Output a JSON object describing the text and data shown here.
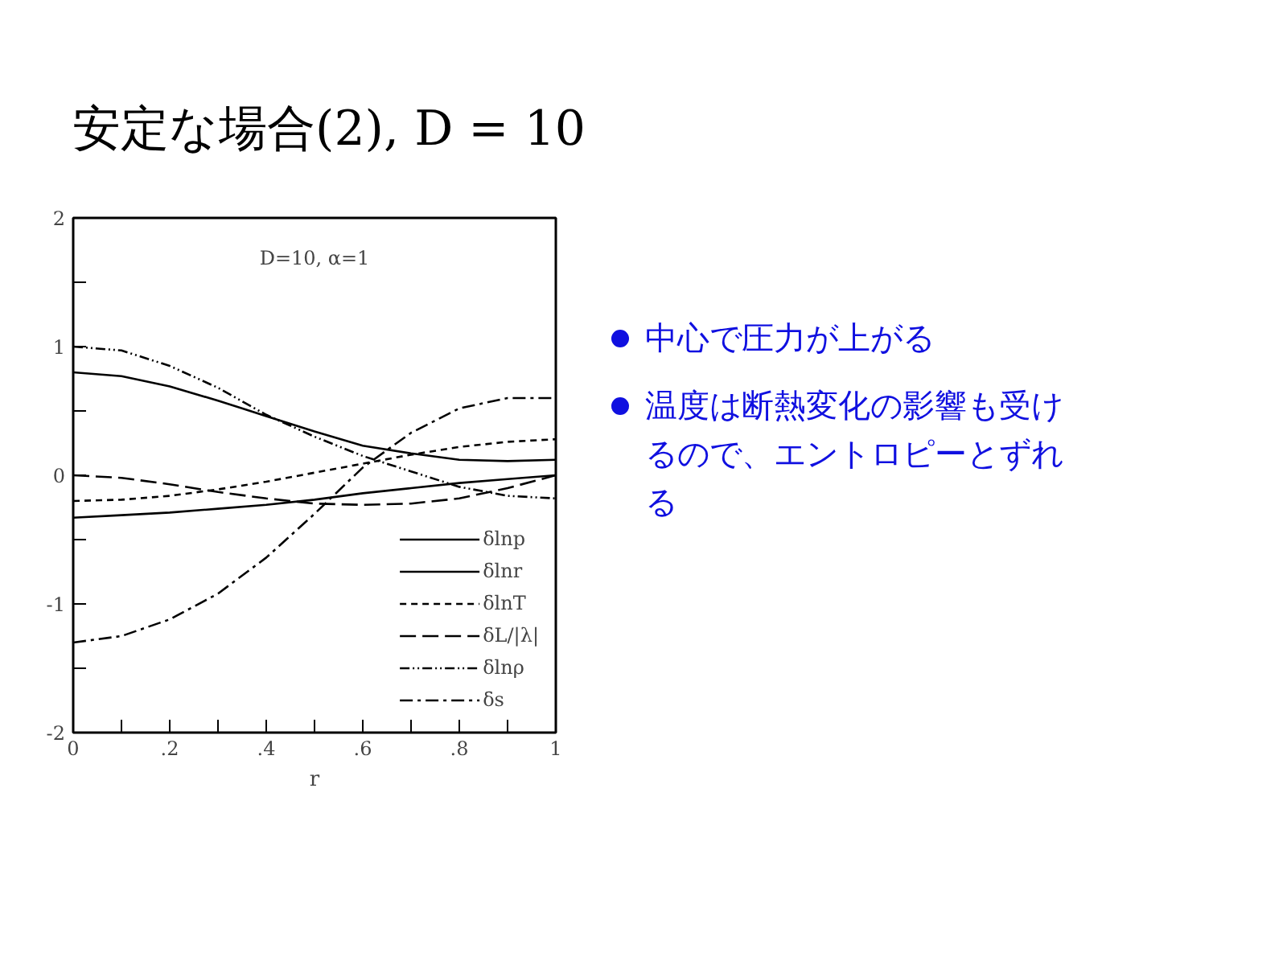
{
  "chart_data": {
    "type": "line",
    "title": "安定な場合(2), D = 10",
    "xlabel": "r",
    "annotations": [
      "D=10, α=1",
      "中心で圧力が上がる",
      "温度は断熱変化の影響も受けるので、エントロピーとずれる"
    ],
    "x": [
      0,
      0.1,
      0.2,
      0.3,
      0.4,
      0.5,
      0.6,
      0.7,
      0.8,
      0.9,
      1.0
    ],
    "series": [
      {
        "name": "δlnp",
        "color": "#000000",
        "line_style": "solid",
        "values": [
          0.8,
          0.77,
          0.69,
          0.58,
          0.46,
          0.34,
          0.23,
          0.17,
          0.12,
          0.11,
          0.12
        ]
      },
      {
        "name": "δlnr",
        "color": "#000000",
        "line_style": "solid",
        "values": [
          -0.33,
          -0.31,
          -0.29,
          -0.26,
          -0.23,
          -0.19,
          -0.14,
          -0.1,
          -0.06,
          -0.03,
          0.0
        ]
      },
      {
        "name": "δlnT",
        "color": "#000000",
        "line_style": "dashed",
        "values": [
          -0.2,
          -0.19,
          -0.16,
          -0.11,
          -0.05,
          0.02,
          0.09,
          0.16,
          0.22,
          0.26,
          0.28
        ]
      },
      {
        "name": "δL/|λ|",
        "color": "#000000",
        "line_style": "longdash",
        "values": [
          0.0,
          -0.02,
          -0.07,
          -0.13,
          -0.18,
          -0.22,
          -0.23,
          -0.22,
          -0.18,
          -0.1,
          0.0
        ]
      },
      {
        "name": "δlnρ",
        "color": "#000000",
        "line_style": "dashdotdot",
        "values": [
          1.0,
          0.97,
          0.85,
          0.68,
          0.47,
          0.3,
          0.15,
          0.03,
          -0.09,
          -0.16,
          -0.18
        ]
      },
      {
        "name": "δs",
        "color": "#000000",
        "line_style": "dashdot",
        "values": [
          -1.3,
          -1.25,
          -1.12,
          -0.92,
          -0.64,
          -0.3,
          0.06,
          0.33,
          0.52,
          0.6,
          0.6
        ]
      }
    ],
    "xlim": [
      0,
      1
    ],
    "ylim": [
      -2,
      2
    ],
    "xticks": [
      0,
      {
        "value": 0.1,
        "label": null
      },
      {
        "value": 0.2,
        "label": ".2"
      },
      {
        "value": 0.3,
        "label": null
      },
      {
        "value": 0.4,
        "label": ".4"
      },
      {
        "value": 0.5,
        "label": null
      },
      {
        "value": 0.6,
        "label": ".6"
      },
      {
        "value": 0.7,
        "label": null
      },
      {
        "value": 0.8,
        "label": ".8"
      },
      {
        "value": 0.9,
        "label": null
      },
      1
    ],
    "yticks": [
      -2,
      {
        "value": -1.5,
        "label": null
      },
      -1,
      {
        "value": -0.5,
        "label": null
      },
      0,
      {
        "value": 0.5,
        "label": null
      },
      1,
      {
        "value": 1.5,
        "label": null
      },
      2
    ],
    "grid": false,
    "legend": "bottom right"
  }
}
